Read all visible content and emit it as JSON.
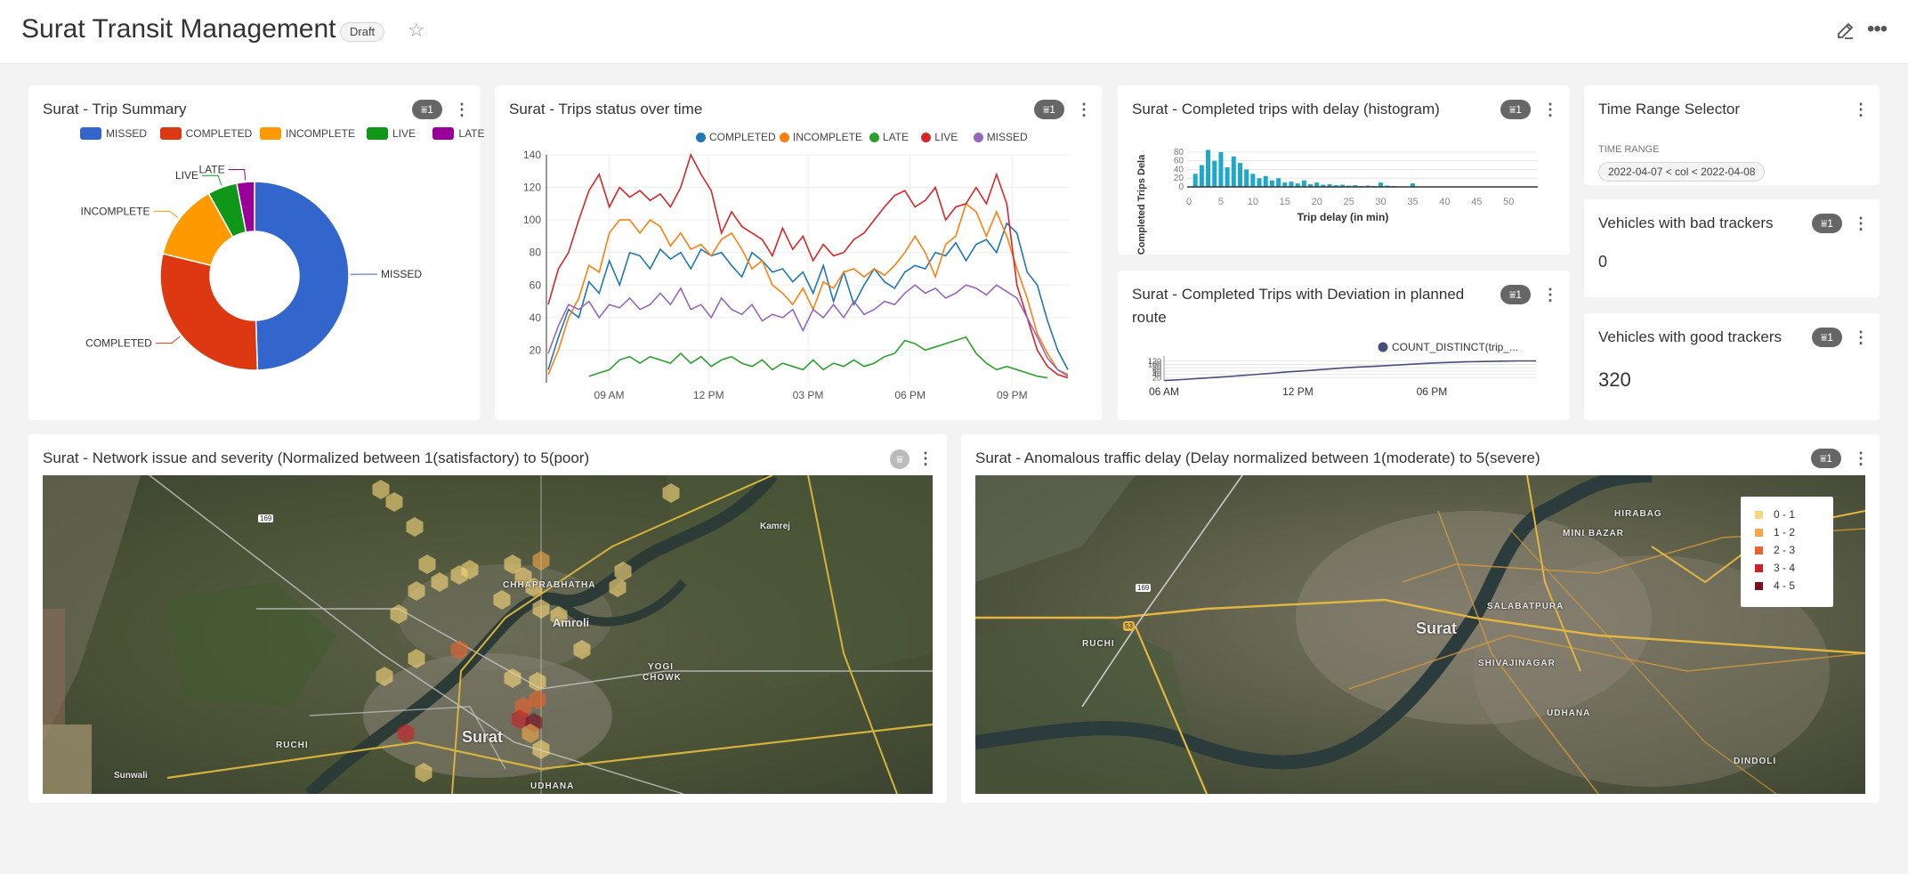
{
  "header": {
    "title": "Surat Transit Management",
    "badge": "Draft"
  },
  "cards": {
    "trip_summary": {
      "title": "Surat - Trip Summary",
      "filter_count": "1"
    },
    "trips_status": {
      "title": "Surat - Trips status over time",
      "filter_count": "1"
    },
    "histogram": {
      "title": "Surat - Completed trips with delay (histogram)",
      "filter_count": "1"
    },
    "deviation": {
      "title": "Surat - Completed Trips with Deviation in planned route",
      "filter_count": "1"
    },
    "time_range": {
      "title": "Time Range Selector",
      "label": "TIME RANGE",
      "value": "2022-04-07 < col < 2022-04-08"
    },
    "bad_trackers": {
      "title": "Vehicles with bad trackers",
      "filter_count": "1",
      "value": "0"
    },
    "good_trackers": {
      "title": "Vehicles with good trackers",
      "filter_count": "1",
      "value": "320"
    },
    "network": {
      "title": "Surat - Network issue and severity (Normalized between 1(satisfactory) to 5(poor)"
    },
    "traffic": {
      "title": "Surat - Anomalous traffic delay (Delay normalized between 1(moderate) to 5(severe)",
      "filter_count": "1"
    }
  },
  "map_labels": {
    "network": {
      "surat": "Surat",
      "amroli": "Amroli",
      "chhaprabhatha": "CHHAPRABHATHA",
      "yogi_chowk_1": "YOGI",
      "yogi_chowk_2": "CHOWK",
      "kamrej": "Kamrej",
      "ruchi": "RUCHI",
      "udhana": "UDHANA",
      "sunwali": "Sunwali",
      "nh": "169"
    },
    "traffic": {
      "surat": "Surat",
      "salabatpura": "SALABATPURA",
      "shivajinagar": "SHIVAJINAGAR",
      "udhana": "UDHANA",
      "dindoli": "DINDOLI",
      "mini_bazar": "MINI BAZAR",
      "hirabag": "HIRABAG",
      "ruchi": "RUCHI",
      "nh": "169",
      "sh": "53"
    }
  },
  "map_legend": [
    {
      "label": "0 - 1",
      "color": "#f7d77a"
    },
    {
      "label": "1 - 2",
      "color": "#f3a94a"
    },
    {
      "label": "2 - 3",
      "color": "#e8642c"
    },
    {
      "label": "3 - 4",
      "color": "#c9202a"
    },
    {
      "label": "4 - 5",
      "color": "#7a0d1e"
    }
  ],
  "chart_data": [
    {
      "type": "pie",
      "title": "Surat - Trip Summary",
      "labels": [
        "MISSED",
        "COMPLETED",
        "INCOMPLETE",
        "LIVE",
        "LATE"
      ],
      "values": [
        49,
        29,
        13,
        5,
        3
      ],
      "colors": [
        "#3366cc",
        "#dc3912",
        "#ff9900",
        "#109618",
        "#990099"
      ]
    },
    {
      "type": "line",
      "title": "Surat - Trips status over time",
      "x_ticks": [
        "09 AM",
        "12 PM",
        "03 PM",
        "06 PM",
        "09 PM"
      ],
      "ylim": [
        0,
        140
      ],
      "y_ticks": [
        20,
        40,
        60,
        80,
        100,
        120,
        140
      ],
      "series": [
        {
          "name": "COMPLETED",
          "color": "#1f77b4",
          "values": [
            8,
            28,
            45,
            40,
            62,
            55,
            75,
            60,
            80,
            78,
            70,
            82,
            76,
            80,
            70,
            82,
            78,
            80,
            72,
            65,
            80,
            75,
            68,
            70,
            62,
            68,
            55,
            72,
            50,
            68,
            48,
            60,
            70,
            62,
            58,
            68,
            72,
            70,
            80,
            78,
            86,
            75,
            85,
            88,
            80,
            98,
            92,
            68,
            60,
            38,
            20,
            8
          ]
        },
        {
          "name": "INCOMPLETE",
          "color": "#ff7f0e",
          "values": [
            5,
            20,
            40,
            52,
            72,
            68,
            92,
            100,
            100,
            92,
            100,
            96,
            84,
            92,
            82,
            85,
            78,
            88,
            92,
            82,
            70,
            75,
            60,
            55,
            48,
            58,
            45,
            62,
            58,
            68,
            70,
            65,
            70,
            66,
            72,
            80,
            90,
            80,
            65,
            85,
            90,
            110,
            105,
            90,
            105,
            90,
            70,
            52,
            30,
            18,
            8,
            5
          ]
        },
        {
          "name": "LATE",
          "color": "#2ca02c",
          "values": [
            null,
            null,
            null,
            null,
            4,
            6,
            8,
            14,
            16,
            12,
            16,
            14,
            12,
            18,
            12,
            16,
            10,
            14,
            16,
            12,
            10,
            14,
            8,
            12,
            10,
            8,
            14,
            8,
            12,
            10,
            14,
            10,
            12,
            16,
            18,
            26,
            24,
            20,
            22,
            24,
            26,
            28,
            18,
            12,
            8,
            10,
            8,
            6,
            4,
            3,
            null,
            null
          ]
        },
        {
          "name": "LIVE",
          "color": "#d62728",
          "values": [
            48,
            70,
            80,
            100,
            118,
            128,
            108,
            120,
            114,
            118,
            112,
            116,
            108,
            120,
            140,
            128,
            118,
            92,
            105,
            96,
            92,
            88,
            78,
            95,
            82,
            90,
            75,
            85,
            78,
            80,
            88,
            92,
            100,
            108,
            115,
            118,
            108,
            112,
            120,
            100,
            108,
            110,
            120,
            110,
            128,
            110,
            60,
            40,
            20,
            10,
            5,
            3
          ]
        },
        {
          "name": "MISSED",
          "color": "#9467bd",
          "values": [
            18,
            35,
            48,
            45,
            50,
            40,
            48,
            46,
            52,
            45,
            48,
            55,
            48,
            58,
            45,
            48,
            40,
            52,
            45,
            42,
            48,
            38,
            42,
            40,
            45,
            32,
            45,
            40,
            48,
            40,
            50,
            42,
            45,
            50,
            48,
            55,
            60,
            55,
            58,
            52,
            55,
            60,
            58,
            54,
            60,
            56,
            52,
            40,
            28,
            15,
            8,
            4
          ]
        }
      ]
    },
    {
      "type": "bar",
      "title": "Surat - Completed trips with delay (histogram)",
      "xlabel": "Trip delay (in min)",
      "ylabel": "Completed Trips Dela",
      "x_ticks": [
        "0",
        "5",
        "10",
        "15",
        "20",
        "25",
        "30",
        "35",
        "40",
        "45",
        "50"
      ],
      "y_ticks": [
        "0",
        "20",
        "40",
        "60",
        "80"
      ],
      "ylim": [
        0,
        90
      ],
      "categories": [
        "1",
        "2",
        "3",
        "4",
        "5",
        "6",
        "7",
        "8",
        "9",
        "10",
        "11",
        "12",
        "13",
        "14",
        "15",
        "16",
        "17",
        "18",
        "19",
        "20",
        "21",
        "22",
        "23",
        "24",
        "25",
        "26",
        "27",
        "28",
        "29",
        "30",
        "31",
        "32",
        "33",
        "34",
        "35",
        "36",
        "37",
        "38"
      ],
      "values": [
        30,
        50,
        85,
        60,
        80,
        45,
        70,
        55,
        40,
        30,
        20,
        25,
        15,
        20,
        10,
        12,
        8,
        15,
        6,
        10,
        5,
        6,
        4,
        5,
        3,
        4,
        2,
        3,
        2,
        10,
        3,
        2,
        1,
        1,
        8,
        1,
        1,
        1
      ]
    },
    {
      "type": "line",
      "title": "Surat - Completed Trips with Deviation in planned route",
      "x_ticks": [
        "06 AM",
        "12 PM",
        "06 PM"
      ],
      "y_ticks": [
        "20",
        "40",
        "60",
        "80",
        "100",
        "120"
      ],
      "ylim": [
        0,
        130
      ],
      "series": [
        {
          "name": "COUNT_DISTINCT(trip_...",
          "color": "#454e7c",
          "values": [
            2,
            8,
            15,
            22,
            30,
            38,
            46,
            55,
            62,
            70,
            78,
            85,
            90,
            96,
            102,
            108,
            112,
            116,
            118,
            120,
            122,
            122
          ]
        }
      ]
    }
  ]
}
